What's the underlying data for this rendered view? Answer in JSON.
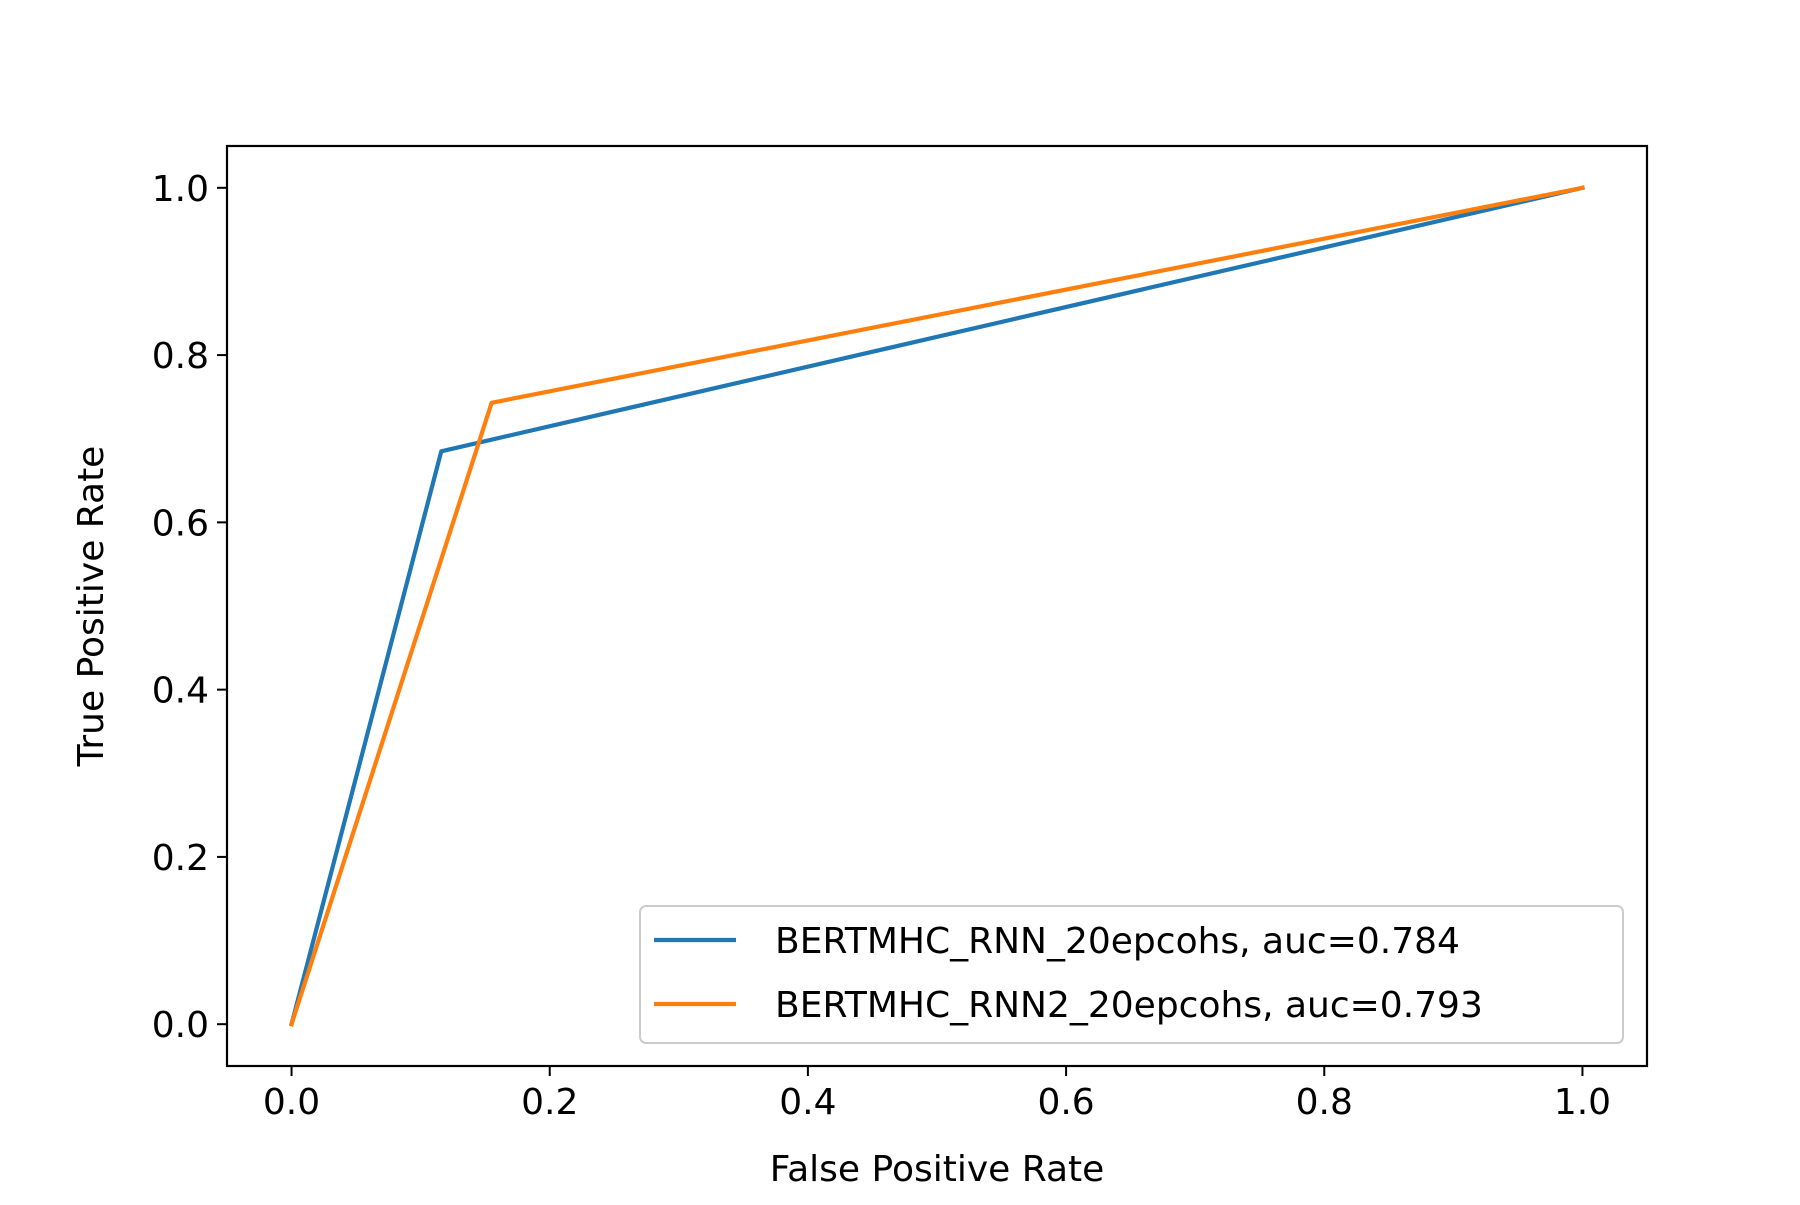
{
  "chart_data": {
    "type": "line",
    "title": "",
    "xlabel": "False Positive Rate",
    "ylabel": "True Positive Rate",
    "xlim": [
      -0.05,
      1.05
    ],
    "ylim": [
      -0.05,
      1.05
    ],
    "xticks": [
      0.0,
      0.2,
      0.4,
      0.6,
      0.8,
      1.0
    ],
    "yticks": [
      0.0,
      0.2,
      0.4,
      0.6,
      0.8,
      1.0
    ],
    "xtick_labels": [
      "0.0",
      "0.2",
      "0.4",
      "0.6",
      "0.8",
      "1.0"
    ],
    "ytick_labels": [
      "0.0",
      "0.2",
      "0.4",
      "0.6",
      "0.8",
      "1.0"
    ],
    "grid": false,
    "legend_position": "lower-right",
    "series": [
      {
        "name": "BERTMHC_RNN_20epcohs, auc=0.784",
        "color": "#1f77b4",
        "x": [
          0.0,
          0.116,
          1.0
        ],
        "y": [
          0.0,
          0.685,
          1.0
        ]
      },
      {
        "name": "BERTMHC_RNN2_20epcohs, auc=0.793",
        "color": "#ff7f0e",
        "x": [
          0.0,
          0.155,
          1.0
        ],
        "y": [
          0.0,
          0.743,
          1.0
        ]
      }
    ]
  }
}
